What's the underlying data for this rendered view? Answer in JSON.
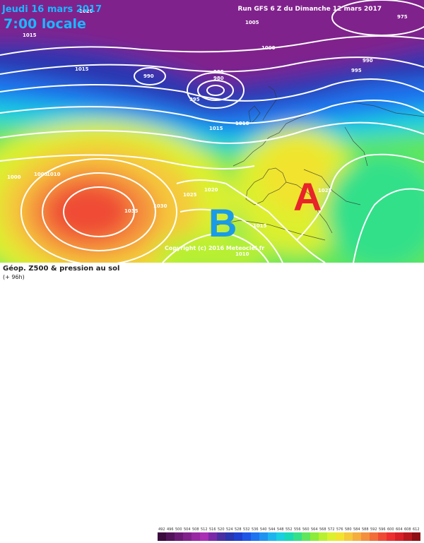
{
  "map": {
    "date": "Jeudi 16 mars 2017",
    "time": "7:00 locale",
    "run": "Run GFS 6 Z du Dimanche 12 mars 2017",
    "high_label": "A",
    "low_label": "B",
    "copyright": "Copyright (c) 2016 Meteociel.fr",
    "isobars": [
      "1020",
      "1015",
      "975",
      "1005",
      "1000",
      "990",
      "990",
      "985",
      "980",
      "995",
      "1015",
      "995",
      "1015",
      "1010",
      "1000",
      "1005",
      "1010",
      "1035",
      "1030",
      "1025",
      "1020",
      "1025",
      "1015",
      "1010"
    ]
  },
  "footer": {
    "title": "Géop. Z500 & pression au sol",
    "forecast": "(+ 96h)"
  },
  "legend": {
    "ticks": [
      "492",
      "496",
      "500",
      "504",
      "508",
      "512",
      "516",
      "520",
      "524",
      "528",
      "532",
      "536",
      "540",
      "544",
      "548",
      "552",
      "556",
      "560",
      "564",
      "568",
      "572",
      "576",
      "580",
      "584",
      "588",
      "592",
      "596",
      "600",
      "604",
      "608",
      "612"
    ],
    "colors": [
      "#3b0a3f",
      "#51125a",
      "#6a1a75",
      "#80218c",
      "#9827a3",
      "#a92fb4",
      "#7a2aa8",
      "#4a2fa3",
      "#2a35b0",
      "#1f3fd0",
      "#1f55e6",
      "#1e73f0",
      "#1e93f0",
      "#1eb5ef",
      "#19cfe0",
      "#17d9b5",
      "#33e08a",
      "#5fe65c",
      "#8cec3a",
      "#b8f030",
      "#dcf02e",
      "#f2e32f",
      "#f5c93a",
      "#f5ad3e",
      "#f48f3d",
      "#f26d39",
      "#ef4b34",
      "#ec2e30",
      "#d81f27",
      "#b8171d",
      "#8f0f14"
    ]
  },
  "colors": {
    "accent_blue": "#1ab7ff",
    "high_red": "#e8232a",
    "low_blue": "#1a9be6"
  }
}
